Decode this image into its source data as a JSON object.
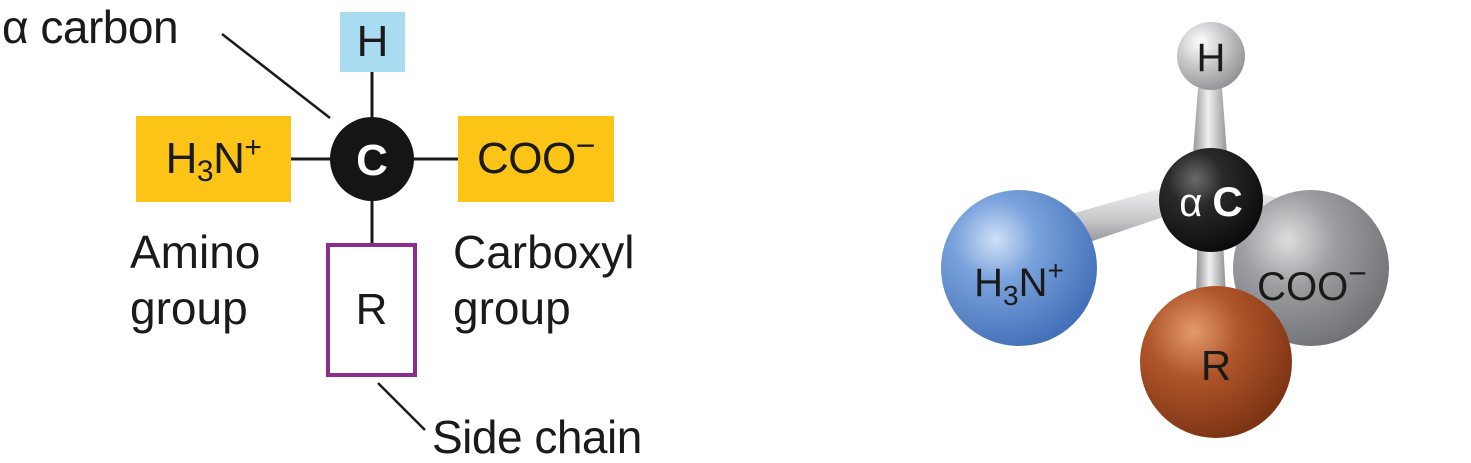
{
  "left_diagram": {
    "alpha_label": "α carbon",
    "center_atom": "C",
    "top_atom": "H",
    "amino_group": {
      "main": "H",
      "sub": "3",
      "tail": "N",
      "charge": "+"
    },
    "carboxyl_group": {
      "main": "COO",
      "charge": "−"
    },
    "side_group": "R",
    "amino_caption": "Amino\ngroup",
    "carboxyl_caption": "Carboxyl\ngroup",
    "side_chain_caption": "Side chain"
  },
  "right_model": {
    "top_atom": "H",
    "center_prefix": "α",
    "center_atom": "C",
    "amino_group": {
      "main": "H",
      "sub": "3",
      "tail": "N",
      "charge": "+"
    },
    "carboxyl_group": {
      "main": "COO",
      "charge": "−"
    },
    "side_group": "R"
  },
  "colors": {
    "hydrogen_box": "#a9dcf0",
    "group_box": "#fcc416",
    "side_chain_border": "#8b2d8f",
    "carbon": "#151515",
    "amino_sphere": "#5f8dcf",
    "carboxyl_sphere": "#8d8f92",
    "r_sphere": "#a84d1f",
    "h_sphere": "#c8cacc"
  }
}
